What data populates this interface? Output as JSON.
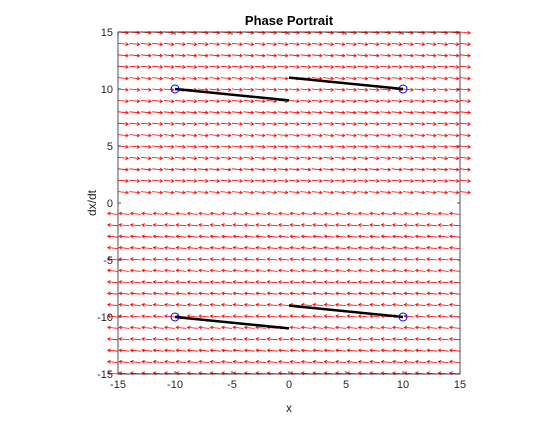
{
  "chart_data": {
    "type": "line",
    "title": "Phase Portrait",
    "xlabel": "x",
    "ylabel": "dx/dt",
    "xlim": [
      -15,
      15
    ],
    "ylim": [
      -15,
      15
    ],
    "xticks": [
      -15,
      -10,
      -5,
      0,
      5,
      10,
      15
    ],
    "yticks": [
      -15,
      -10,
      -5,
      0,
      5,
      10,
      15
    ],
    "grid": "off",
    "colors": {
      "vector_field": "#ff0000",
      "trajectory": "#000000",
      "marker": "#0000ff"
    },
    "vector_field": {
      "x_samples": [
        -15,
        -14,
        -13,
        -12,
        -11,
        -10,
        -9,
        -8,
        -7,
        -6,
        -5,
        -4,
        -3,
        -2,
        -1,
        0,
        1,
        2,
        3,
        4,
        5,
        6,
        7,
        8,
        9,
        10,
        11,
        12,
        13,
        14,
        15
      ],
      "y_samples": [
        -15,
        -14,
        -13,
        -12,
        -11,
        -10,
        -9,
        -8,
        -7,
        -6,
        -5,
        -4,
        -3,
        -2,
        -1,
        0,
        1,
        2,
        3,
        4,
        5,
        6,
        7,
        8,
        9,
        10,
        11,
        12,
        13,
        14,
        15
      ]
    },
    "series": [
      {
        "x": [
          -10,
          0
        ],
        "y": [
          10,
          9
        ]
      },
      {
        "x": [
          0,
          10
        ],
        "y": [
          11,
          10
        ]
      },
      {
        "x": [
          -10,
          0
        ],
        "y": [
          -10,
          -11
        ]
      },
      {
        "x": [
          0,
          10
        ],
        "y": [
          -9,
          -10
        ]
      }
    ],
    "start_points": [
      {
        "x": -10,
        "y": 10
      },
      {
        "x": 10,
        "y": 10
      },
      {
        "x": -10,
        "y": -10
      },
      {
        "x": 10,
        "y": -10
      }
    ]
  }
}
